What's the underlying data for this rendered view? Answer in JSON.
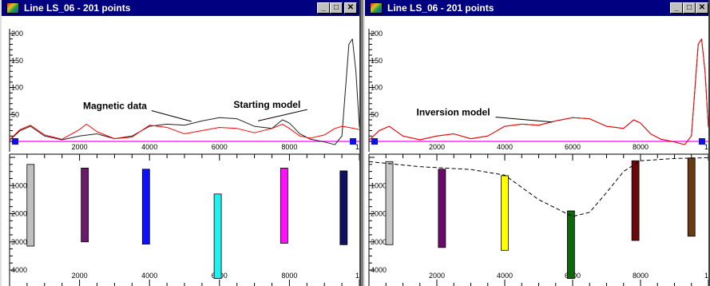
{
  "windows": [
    {
      "title": "Line LS_06 - 201 points",
      "buttons": {
        "minimize": "_",
        "maximize": "□",
        "close": "✕"
      },
      "colors": {
        "observed": "#202020",
        "calculated": "#ff0000",
        "zero_line": "#ff00ff"
      },
      "chart_data": [
        {
          "type": "line",
          "x_ticks": [
            "2000",
            "4000",
            "6000",
            "8000",
            "10"
          ],
          "y_ticks": [
            "50",
            "100",
            "150",
            "200"
          ],
          "xlim": [
            0,
            10000
          ],
          "ylim": [
            0,
            200
          ],
          "series": [
            {
              "role": "observed",
              "x": [
                0,
                300,
                600,
                1000,
                1500,
                2000,
                2500,
                3000,
                3500,
                4000,
                4500,
                5000,
                5500,
                6000,
                6500,
                7000,
                7500,
                7800,
                8000,
                8300,
                8600,
                9000,
                9300,
                9500,
                9700,
                9800,
                9900,
                10000
              ],
              "values": [
                2,
                20,
                28,
                10,
                3,
                10,
                14,
                5,
                10,
                28,
                32,
                30,
                38,
                44,
                42,
                28,
                24,
                40,
                34,
                14,
                4,
                -1,
                -6,
                10,
                180,
                190,
                130,
                26
              ]
            },
            {
              "role": "calculated",
              "x": [
                0,
                300,
                600,
                1000,
                1500,
                2000,
                2200,
                2500,
                3000,
                3500,
                4000,
                4500,
                5000,
                5500,
                6000,
                6500,
                7000,
                7500,
                7800,
                8000,
                8300,
                8600,
                9000,
                9300,
                9500,
                9700,
                10000
              ],
              "values": [
                3,
                22,
                30,
                12,
                4,
                22,
                32,
                18,
                5,
                8,
                30,
                26,
                14,
                20,
                26,
                24,
                16,
                24,
                32,
                24,
                10,
                6,
                12,
                24,
                28,
                26,
                22
              ]
            }
          ],
          "labels": [
            {
              "text": "Magnetic data",
              "at": [
                2100,
                60
              ],
              "to": [
                5200,
                37
              ]
            },
            {
              "text": "Starting model",
              "at": [
                6400,
                62
              ],
              "to": [
                7100,
                38
              ]
            }
          ]
        },
        {
          "type": "bar",
          "x_ticks": [
            "2000",
            "4000",
            "6000",
            "8000",
            "10"
          ],
          "y_ticks": [
            "1000",
            "2000",
            "3000",
            "4000"
          ],
          "xlim": [
            0,
            10000
          ],
          "ylim": [
            0,
            4200
          ],
          "bodies": [
            {
              "x": 600,
              "top": 250,
              "bottom": 3150,
              "color": "#c0c0c0"
            },
            {
              "x": 2150,
              "top": 380,
              "bottom": 3000,
              "color": "#6a1a6a"
            },
            {
              "x": 3900,
              "top": 420,
              "bottom": 3080,
              "color": "#1010ff"
            },
            {
              "x": 5950,
              "top": 1300,
              "bottom": 4300,
              "color": "#20f0f0"
            },
            {
              "x": 7850,
              "top": 380,
              "bottom": 3050,
              "color": "#ff10ff"
            },
            {
              "x": 9550,
              "top": 480,
              "bottom": 3100,
              "color": "#101060"
            }
          ]
        }
      ]
    },
    {
      "title": "Line LS_06 - 201 points",
      "buttons": {
        "minimize": "_",
        "maximize": "□",
        "close": "✕"
      },
      "colors": {
        "observed": "#202020",
        "calculated": "#ff0000",
        "zero_line": "#ff00ff"
      },
      "chart_data": [
        {
          "type": "line",
          "x_ticks": [
            "2000",
            "4000",
            "6000",
            "8000",
            "10"
          ],
          "y_ticks": [
            "50",
            "100",
            "150",
            "200"
          ],
          "xlim": [
            0,
            10000
          ],
          "ylim": [
            0,
            200
          ],
          "series": [
            {
              "role": "observed",
              "x": [
                0,
                300,
                600,
                1000,
                1500,
                2000,
                2500,
                3000,
                3500,
                4000,
                4500,
                5000,
                5500,
                6000,
                6500,
                7000,
                7500,
                7800,
                8000,
                8300,
                8600,
                9000,
                9300,
                9500,
                9700,
                9800,
                9900,
                10000
              ],
              "values": [
                2,
                20,
                28,
                10,
                3,
                10,
                14,
                5,
                10,
                28,
                32,
                30,
                38,
                44,
                42,
                28,
                24,
                40,
                34,
                14,
                4,
                -1,
                -6,
                10,
                180,
                190,
                130,
                26
              ]
            },
            {
              "role": "calculated",
              "x": [
                0,
                300,
                600,
                1000,
                1500,
                2000,
                2500,
                3000,
                3500,
                4000,
                4500,
                5000,
                5500,
                6000,
                6500,
                7000,
                7500,
                7800,
                8000,
                8300,
                8600,
                9000,
                9300,
                9500,
                9700,
                9800,
                9900,
                10000
              ],
              "values": [
                2,
                20,
                28,
                10,
                3,
                10,
                14,
                5,
                10,
                28,
                32,
                30,
                38,
                44,
                42,
                28,
                24,
                40,
                34,
                14,
                4,
                -1,
                -6,
                10,
                180,
                190,
                130,
                26
              ]
            }
          ],
          "labels": [
            {
              "text": "Inversion model",
              "at": [
                1400,
                48
              ],
              "to": [
                5400,
                36
              ]
            }
          ]
        },
        {
          "type": "bar",
          "x_ticks": [
            "2000",
            "4000",
            "6000",
            "8000",
            "10"
          ],
          "y_ticks": [
            "1000",
            "2000",
            "3000",
            "4000"
          ],
          "xlim": [
            0,
            10000
          ],
          "ylim": [
            0,
            4200
          ],
          "bodies": [
            {
              "x": 600,
              "top": 150,
              "bottom": 3100,
              "color": "#c8c8c8"
            },
            {
              "x": 2150,
              "top": 420,
              "bottom": 3200,
              "color": "#6a0a6a"
            },
            {
              "x": 4000,
              "top": 650,
              "bottom": 3300,
              "color": "#ffff00"
            },
            {
              "x": 5950,
              "top": 1900,
              "bottom": 4300,
              "color": "#0a6a0a"
            },
            {
              "x": 7850,
              "top": 120,
              "bottom": 2950,
              "color": "#6a0a0a"
            },
            {
              "x": 9500,
              "top": 20,
              "bottom": 2800,
              "color": "#6a3a10"
            }
          ],
          "basement": {
            "x": [
              0,
              1500,
              3000,
              4000,
              5000,
              6000,
              6500,
              7000,
              7500,
              8000,
              9000,
              10000
            ],
            "values": [
              150,
              330,
              430,
              630,
              1500,
              2100,
              1950,
              1250,
              500,
              120,
              40,
              10
            ]
          }
        }
      ]
    }
  ]
}
